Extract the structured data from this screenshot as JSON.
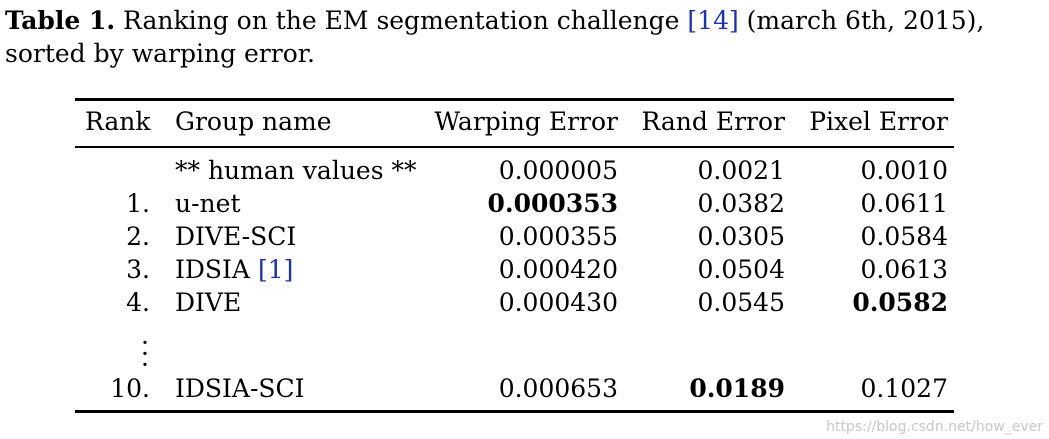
{
  "caption": {
    "label": "Table 1.",
    "text_part1": " Ranking on the EM segmentation challenge ",
    "citation": "[14]",
    "text_part2": " (march 6th, 2015), sorted by warping error."
  },
  "table": {
    "headers": {
      "rank": "Rank",
      "group": "Group name",
      "warping": "Warping Error",
      "rand": "Rand Error",
      "pixel": "Pixel Error"
    },
    "rows": [
      {
        "rank": "",
        "group": "** human values **",
        "group_citation": "",
        "warping": "0.000005",
        "rand": "0.0021",
        "pixel": "0.0010"
      },
      {
        "rank": "1.",
        "group": "u-net",
        "group_citation": "",
        "warping": "0.000353",
        "rand": "0.0382",
        "pixel": "0.0611"
      },
      {
        "rank": "2.",
        "group": "DIVE-SCI",
        "group_citation": "",
        "warping": "0.000355",
        "rand": "0.0305",
        "pixel": "0.0584"
      },
      {
        "rank": "3.",
        "group": "IDSIA ",
        "group_citation": "[1]",
        "warping": "0.000420",
        "rand": "0.0504",
        "pixel": "0.0613"
      },
      {
        "rank": "4.",
        "group": "DIVE",
        "group_citation": "",
        "warping": "0.000430",
        "rand": "0.0545",
        "pixel": "0.0582"
      },
      {
        "rank": "10.",
        "group": "IDSIA-SCI",
        "group_citation": "",
        "warping": "0.000653",
        "rand": "0.0189",
        "pixel": "0.1027"
      }
    ],
    "ellipsis": "⋮"
  },
  "watermark": "https://blog.csdn.net/how_ever"
}
